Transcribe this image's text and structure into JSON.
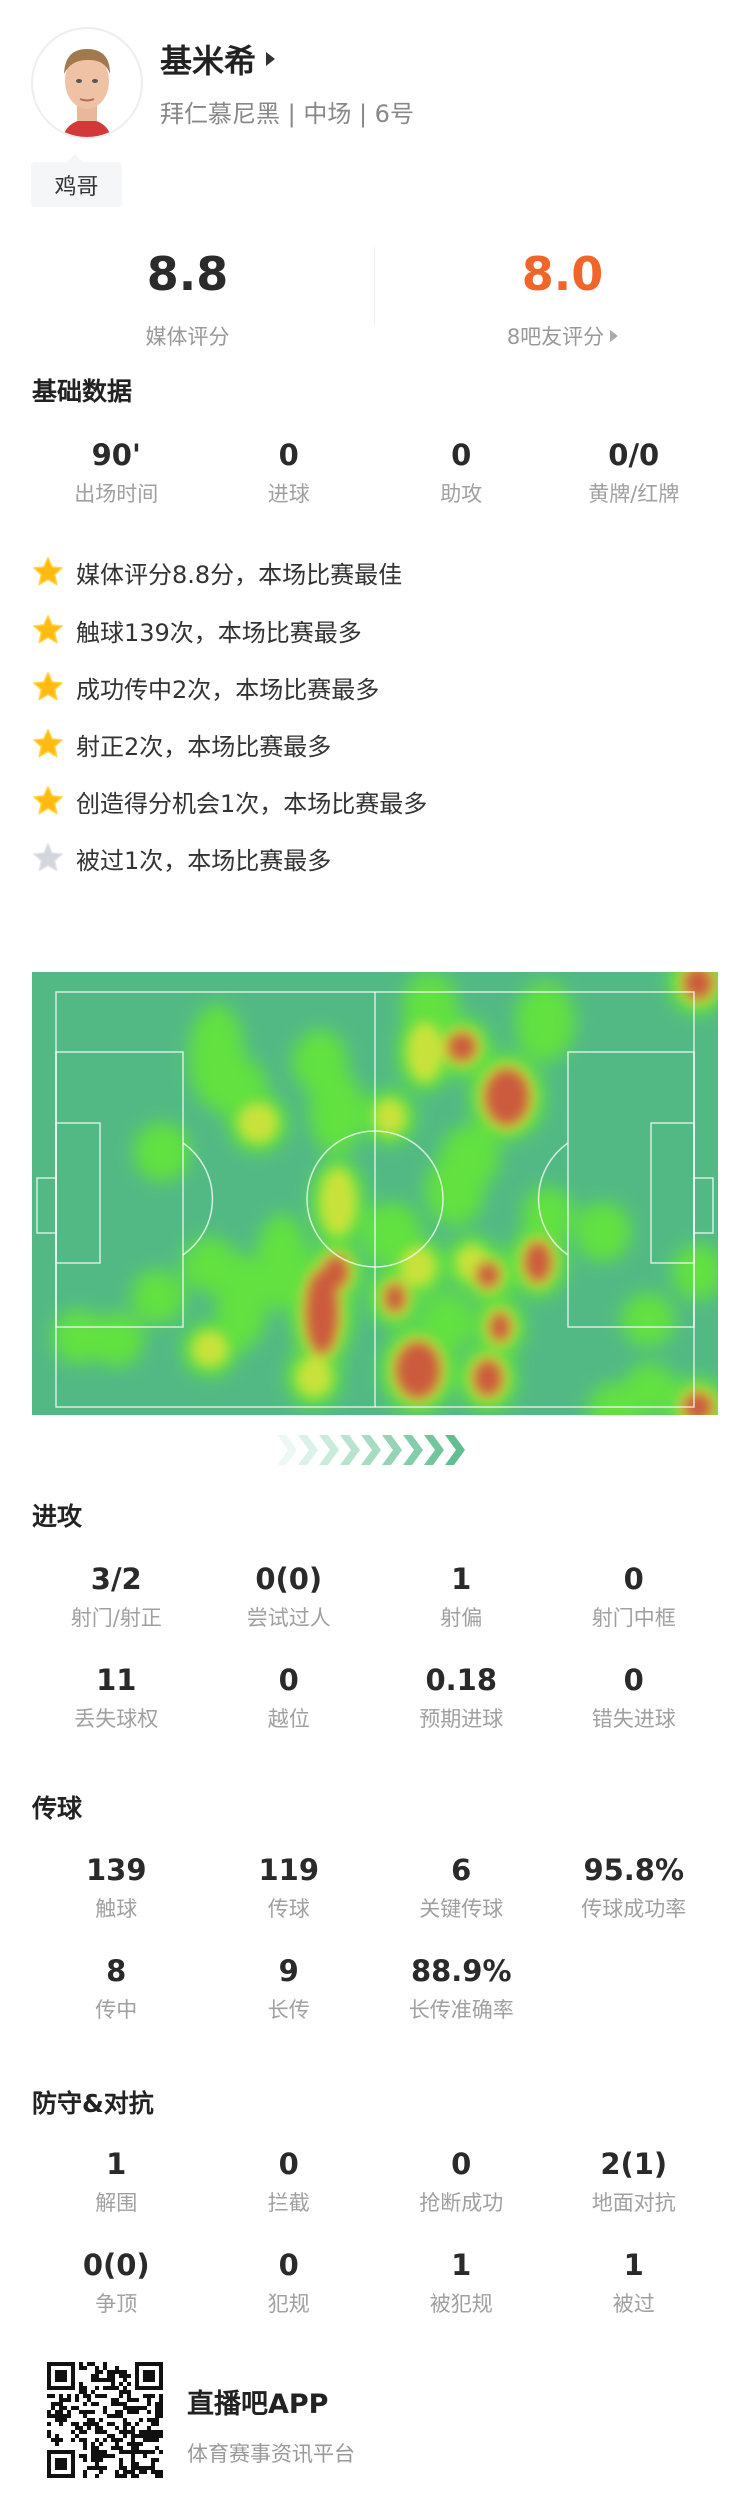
{
  "player": {
    "name": "基米希",
    "subtitle": "拜仁慕尼黑 | 中场 | 6号",
    "nickname_tag": "鸡哥"
  },
  "ratings": {
    "media": {
      "value": "8.8",
      "label": "媒体评分"
    },
    "fans": {
      "value": "8.0",
      "label": "8吧友评分",
      "color": "#f0652a"
    }
  },
  "basic": {
    "title": "基础数据",
    "stats": [
      {
        "value": "90'",
        "label": "出场时间"
      },
      {
        "value": "0",
        "label": "进球"
      },
      {
        "value": "0",
        "label": "助攻"
      },
      {
        "value": "0/0",
        "label": "黄牌/红牌"
      }
    ]
  },
  "highlights": [
    {
      "text": "媒体评分8.8分，本场比赛最佳",
      "icon": "star-gold"
    },
    {
      "text": "触球139次，本场比赛最多",
      "icon": "star-gold"
    },
    {
      "text": "成功传中2次，本场比赛最多",
      "icon": "star-gold"
    },
    {
      "text": "射正2次，本场比赛最多",
      "icon": "star-gold"
    },
    {
      "text": "创造得分机会1次，本场比赛最多",
      "icon": "star-gold"
    },
    {
      "text": "被过1次，本场比赛最多",
      "icon": "star-gray"
    }
  ],
  "heatmap": {
    "attack_direction": "right",
    "pitch_color": "#52b985"
  },
  "attack": {
    "title": "进攻",
    "stats": [
      {
        "value": "3/2",
        "label": "射门/射正"
      },
      {
        "value": "0(0)",
        "label": "尝试过人"
      },
      {
        "value": "1",
        "label": "射偏"
      },
      {
        "value": "0",
        "label": "射门中框"
      },
      {
        "value": "11",
        "label": "丢失球权"
      },
      {
        "value": "0",
        "label": "越位"
      },
      {
        "value": "0.18",
        "label": "预期进球"
      },
      {
        "value": "0",
        "label": "错失进球"
      }
    ]
  },
  "passing": {
    "title": "传球",
    "stats": [
      {
        "value": "139",
        "label": "触球"
      },
      {
        "value": "119",
        "label": "传球"
      },
      {
        "value": "6",
        "label": "关键传球"
      },
      {
        "value": "95.8%",
        "label": "传球成功率"
      },
      {
        "value": "8",
        "label": "传中"
      },
      {
        "value": "9",
        "label": "长传"
      },
      {
        "value": "88.9%",
        "label": "长传准确率"
      }
    ]
  },
  "defense": {
    "title": "防守&对抗",
    "stats": [
      {
        "value": "1",
        "label": "解围"
      },
      {
        "value": "0",
        "label": "拦截"
      },
      {
        "value": "0",
        "label": "抢断成功"
      },
      {
        "value": "2(1)",
        "label": "地面对抗"
      },
      {
        "value": "0(0)",
        "label": "争顶"
      },
      {
        "value": "0",
        "label": "犯规"
      },
      {
        "value": "1",
        "label": "被犯规"
      },
      {
        "value": "1",
        "label": "被过"
      }
    ]
  },
  "footer": {
    "app_name": "直播吧APP",
    "slogan": "体育赛事资讯平台"
  }
}
